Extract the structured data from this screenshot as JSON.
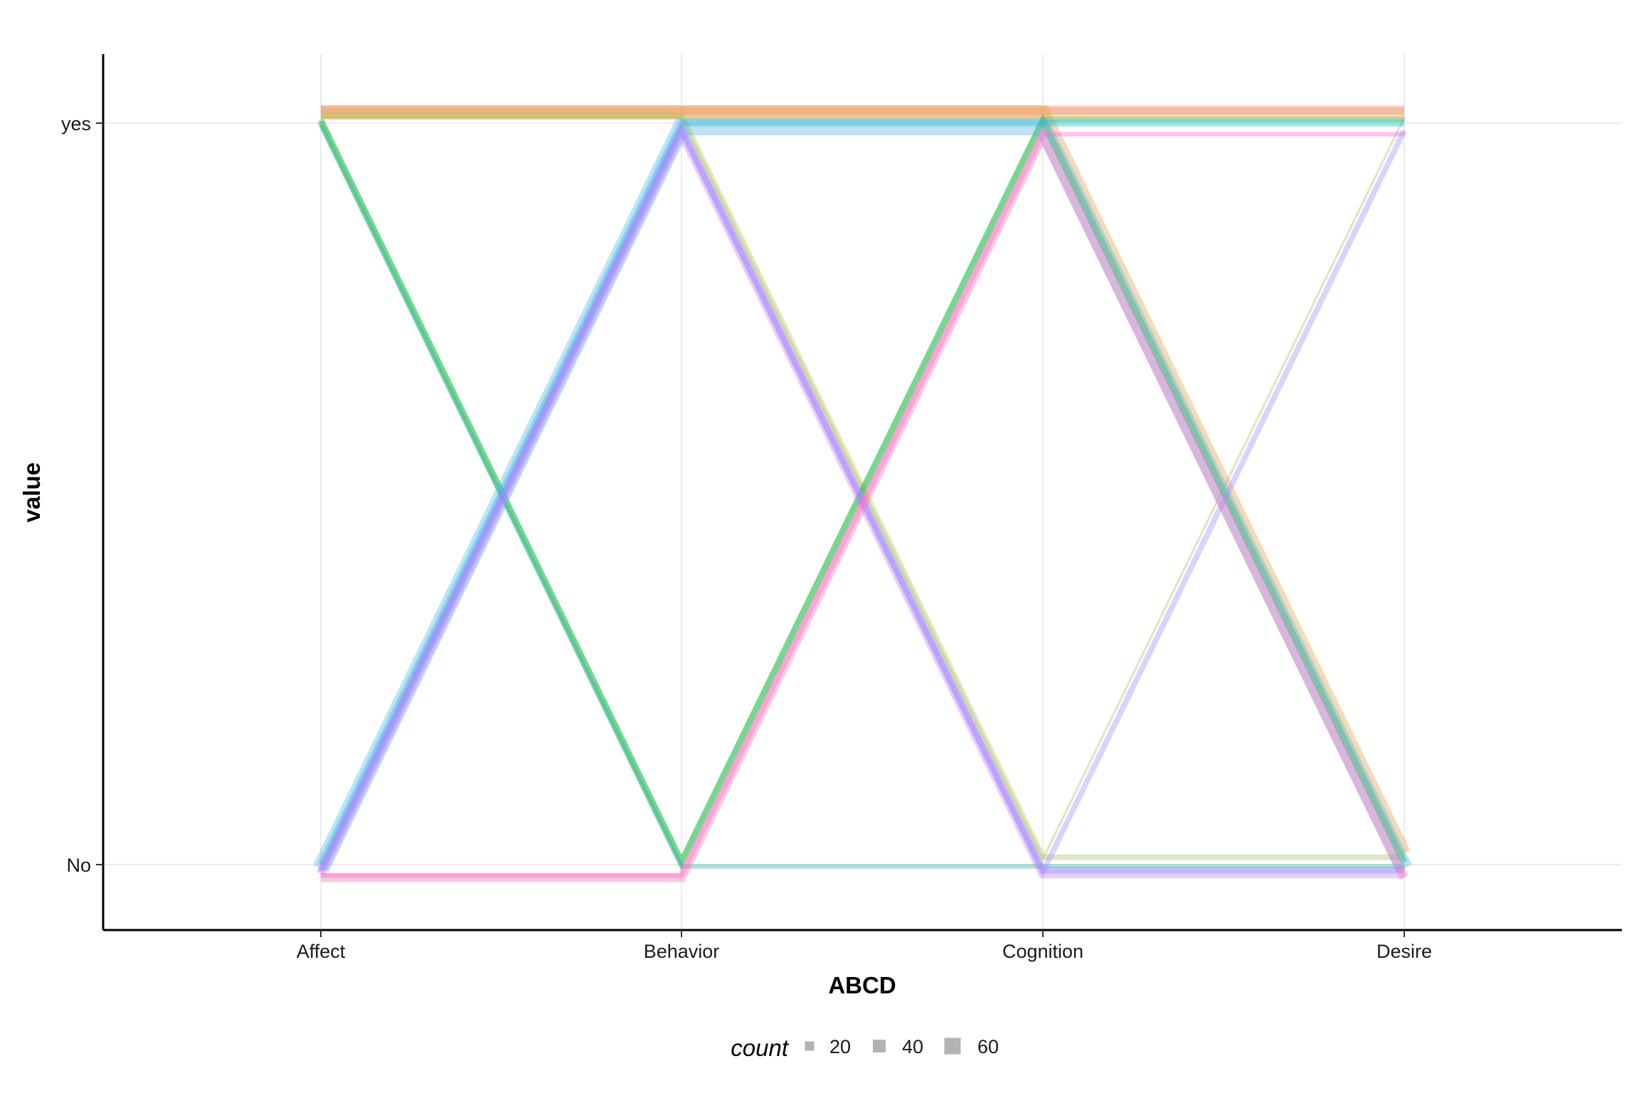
{
  "chart_data": {
    "type": "line",
    "subtype": "parallel-categories",
    "xlabel": "ABCD",
    "ylabel": "value",
    "categories": [
      "Affect",
      "Behavior",
      "Cognition",
      "Desire"
    ],
    "y_levels": [
      "No",
      "yes"
    ],
    "grid": true,
    "legend": {
      "title": "count",
      "position": "bottom",
      "entries": [
        {
          "label": "20",
          "value": 20
        },
        {
          "label": "40",
          "value": 40
        },
        {
          "label": "60",
          "value": 60
        }
      ]
    },
    "series": [
      {
        "color": "#F8766D",
        "count": 40,
        "values": [
          "yes",
          "yes",
          "yes",
          "yes"
        ]
      },
      {
        "color": "#E69F45",
        "count": 60,
        "values": [
          "yes",
          "yes",
          "yes",
          "No"
        ]
      },
      {
        "color": "#E5A657",
        "count": 55,
        "values": [
          "yes",
          "yes",
          "yes",
          "yes"
        ]
      },
      {
        "color": "#A3C45A",
        "count": 25,
        "values": [
          "yes",
          "yes",
          "No",
          "No"
        ]
      },
      {
        "color": "#C4B35A",
        "count": 10,
        "values": [
          "yes",
          "yes",
          "No",
          "yes"
        ]
      },
      {
        "color": "#5CC16A",
        "count": 25,
        "values": [
          "yes",
          "No",
          "yes",
          "yes"
        ]
      },
      {
        "color": "#00BA38",
        "count": 30,
        "values": [
          "yes",
          "No",
          "yes",
          "No"
        ]
      },
      {
        "color": "#00BFC4",
        "count": 30,
        "values": [
          "No",
          "yes",
          "yes",
          "yes"
        ]
      },
      {
        "color": "#2AAE9A",
        "count": 20,
        "values": [
          "yes",
          "No",
          "No",
          "No"
        ]
      },
      {
        "color": "#56B4E9",
        "count": 75,
        "values": [
          "No",
          "yes",
          "yes",
          "No"
        ]
      },
      {
        "color": "#619CFF",
        "count": 30,
        "values": [
          "No",
          "yes",
          "No",
          "No"
        ]
      },
      {
        "color": "#9F8CFF",
        "count": 25,
        "values": [
          "No",
          "yes",
          "No",
          "yes"
        ]
      },
      {
        "color": "#C77CFF",
        "count": 40,
        "values": [
          "No",
          "yes",
          "No",
          "No"
        ]
      },
      {
        "color": "#F564E3",
        "count": 20,
        "values": [
          "No",
          "No",
          "yes",
          "yes"
        ]
      },
      {
        "color": "#FF6FB0",
        "count": 40,
        "values": [
          "No",
          "No",
          "yes",
          "No"
        ]
      }
    ]
  }
}
